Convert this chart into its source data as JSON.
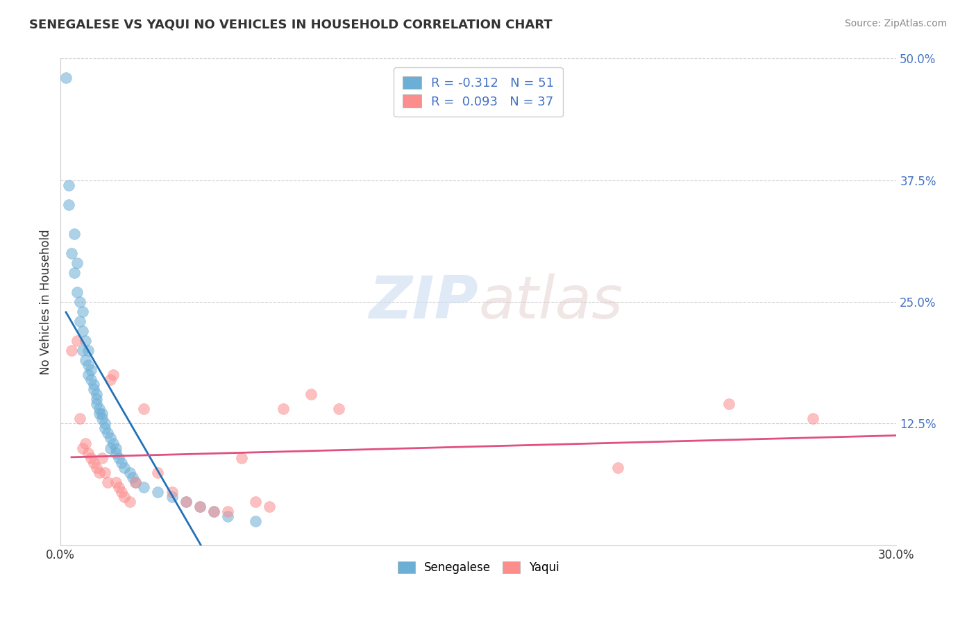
{
  "title": "SENEGALESE VS YAQUI NO VEHICLES IN HOUSEHOLD CORRELATION CHART",
  "source": "Source: ZipAtlas.com",
  "ylabel": "No Vehicles in Household",
  "xlim": [
    0.0,
    0.3
  ],
  "ylim": [
    0.0,
    0.5
  ],
  "ytick_labels_right": [
    "50.0%",
    "37.5%",
    "25.0%",
    "12.5%"
  ],
  "ytick_positions_right": [
    0.5,
    0.375,
    0.25,
    0.125
  ],
  "background_color": "#ffffff",
  "grid_color": "#cccccc",
  "legend_entry1": "R = -0.312   N = 51",
  "legend_entry2": "R =  0.093   N = 37",
  "senegalese_color": "#6baed6",
  "yaqui_color": "#fc8d8d",
  "senegalese_line_color": "#2171b5",
  "yaqui_line_color": "#e05080",
  "senegalese_x": [
    0.002,
    0.003,
    0.003,
    0.004,
    0.005,
    0.005,
    0.006,
    0.006,
    0.007,
    0.007,
    0.008,
    0.008,
    0.008,
    0.009,
    0.009,
    0.01,
    0.01,
    0.01,
    0.011,
    0.011,
    0.012,
    0.012,
    0.013,
    0.013,
    0.013,
    0.014,
    0.014,
    0.015,
    0.015,
    0.016,
    0.016,
    0.017,
    0.018,
    0.018,
    0.019,
    0.02,
    0.02,
    0.021,
    0.022,
    0.023,
    0.025,
    0.026,
    0.027,
    0.03,
    0.035,
    0.04,
    0.045,
    0.05,
    0.055,
    0.06,
    0.07
  ],
  "senegalese_y": [
    0.48,
    0.37,
    0.35,
    0.3,
    0.32,
    0.28,
    0.29,
    0.26,
    0.25,
    0.23,
    0.22,
    0.24,
    0.2,
    0.21,
    0.19,
    0.2,
    0.185,
    0.175,
    0.18,
    0.17,
    0.165,
    0.16,
    0.155,
    0.15,
    0.145,
    0.14,
    0.135,
    0.135,
    0.13,
    0.125,
    0.12,
    0.115,
    0.11,
    0.1,
    0.105,
    0.1,
    0.095,
    0.09,
    0.085,
    0.08,
    0.075,
    0.07,
    0.065,
    0.06,
    0.055,
    0.05,
    0.045,
    0.04,
    0.035,
    0.03,
    0.025
  ],
  "yaqui_x": [
    0.004,
    0.006,
    0.007,
    0.008,
    0.009,
    0.01,
    0.011,
    0.012,
    0.013,
    0.014,
    0.015,
    0.016,
    0.017,
    0.018,
    0.019,
    0.02,
    0.021,
    0.022,
    0.023,
    0.025,
    0.027,
    0.03,
    0.035,
    0.04,
    0.045,
    0.05,
    0.055,
    0.06,
    0.065,
    0.07,
    0.075,
    0.08,
    0.09,
    0.1,
    0.2,
    0.24,
    0.27
  ],
  "yaqui_y": [
    0.2,
    0.21,
    0.13,
    0.1,
    0.105,
    0.095,
    0.09,
    0.085,
    0.08,
    0.075,
    0.09,
    0.075,
    0.065,
    0.17,
    0.175,
    0.065,
    0.06,
    0.055,
    0.05,
    0.045,
    0.065,
    0.14,
    0.075,
    0.055,
    0.045,
    0.04,
    0.035,
    0.035,
    0.09,
    0.045,
    0.04,
    0.14,
    0.155,
    0.14,
    0.08,
    0.145,
    0.13
  ],
  "bottom_legend_labels": [
    "Senegalese",
    "Yaqui"
  ],
  "bottom_legend_colors": [
    "#6baed6",
    "#fc8d8d"
  ]
}
